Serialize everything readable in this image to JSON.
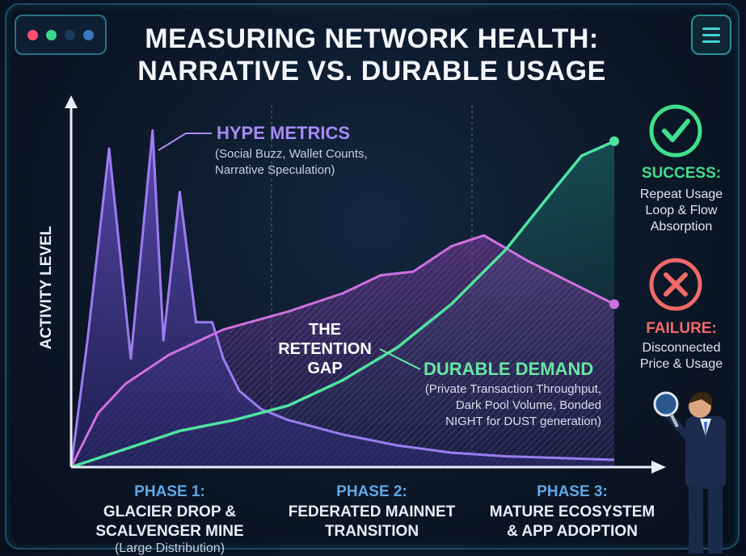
{
  "title_line1": "MEASURING NETWORK HEALTH:",
  "title_line2": "NARRATIVE VS. DURABLE USAGE",
  "window_dot_colors": [
    "#ff4f6d",
    "#39d98a",
    "#1c3a5a",
    "#3a78c2"
  ],
  "colors": {
    "hype": "#9b7cf0",
    "durable": "#4fe3a0",
    "price": "#d070e0",
    "success": "#3fe08a",
    "failure": "#f06a6a",
    "phase": "#5fa8e8"
  },
  "chart_data": {
    "type": "area",
    "title": "MEASURING NETWORK HEALTH: NARRATIVE VS. DURABLE USAGE",
    "ylabel": "ACTIVITY LEVEL",
    "xlim": [
      0,
      100
    ],
    "ylim": [
      0,
      100
    ],
    "grid": false,
    "series": [
      {
        "name": "HYPE METRICS",
        "subtitle": "(Social Buzz, Wallet Counts, Narrative Speculation)",
        "x": [
          0,
          3,
          7,
          11,
          15,
          17,
          20,
          23,
          26,
          28,
          31,
          35,
          40,
          45,
          50,
          55,
          60,
          65,
          70,
          80,
          90,
          100
        ],
        "y": [
          0,
          35,
          88,
          30,
          93,
          35,
          76,
          40,
          40,
          30,
          21,
          16,
          13,
          11,
          9,
          7.5,
          6,
          5,
          4,
          3,
          2.5,
          2
        ]
      },
      {
        "name": "",
        "x": [
          0,
          5,
          10,
          18,
          28,
          40,
          50,
          57,
          63,
          70,
          76,
          84,
          92,
          100
        ],
        "y": [
          0,
          15,
          23,
          31,
          38,
          43,
          48,
          53,
          54,
          61,
          64,
          57,
          51,
          45
        ]
      },
      {
        "name": "DURABLE DEMAND",
        "subtitle": "(Private Transaction Throughput, Dark Pool Volume, Bonded NIGHT for DUST generation)",
        "x": [
          0,
          10,
          20,
          30,
          40,
          50,
          60,
          70,
          80,
          88,
          94,
          100
        ],
        "y": [
          0,
          5,
          10,
          13,
          17,
          24,
          33,
          45,
          60,
          75,
          86,
          90
        ]
      }
    ],
    "phases": [
      {
        "label": "PHASE 1:",
        "desc_line1": "GLACIER DROP &",
        "desc_line2": "SCALVENGER MINE",
        "note": "(Large Distribution)"
      },
      {
        "label": "PHASE 2:",
        "desc_line1": "FEDERATED MAINNET",
        "desc_line2": "TRANSITION"
      },
      {
        "label": "PHASE 3:",
        "desc_line1": "MATURE ECOSYSTEM",
        "desc_line2": "& APP ADOPTION"
      }
    ],
    "annotations": {
      "gap_line1": "THE",
      "gap_line2": "RETENTION",
      "gap_line3": "GAP",
      "success_title": "SUCCESS:",
      "success_line1": "Repeat Usage",
      "success_line2": "Loop & Flow",
      "success_line3": "Absorption",
      "failure_title": "FAILURE:",
      "failure_line1": "Disconnected",
      "failure_line2": "Price & Usage"
    }
  },
  "hype_sub_line1": "(Social Buzz, Wallet Counts,",
  "hype_sub_line2": "Narrative Speculation)",
  "durable_sub_line1": "(Private Transaction Throughput,",
  "durable_sub_line2": "Dark Pool Volume, Bonded",
  "durable_sub_line3": "NIGHT for DUST generation)",
  "icons": [
    "checkmark-circle-icon",
    "x-circle-icon",
    "menu-icon",
    "magnifier-person-figure"
  ]
}
